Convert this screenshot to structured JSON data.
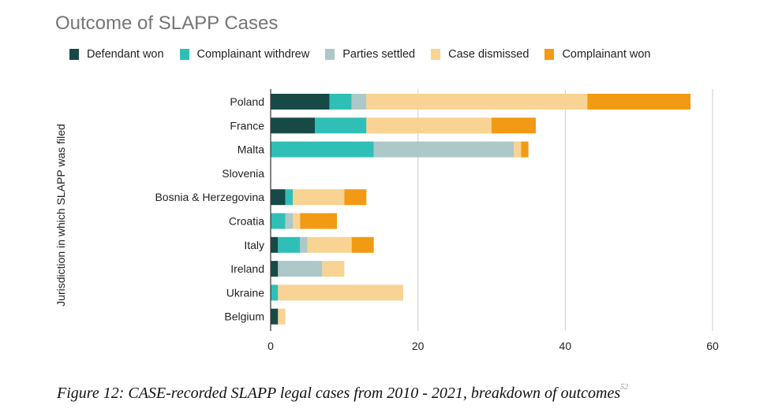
{
  "chart_data": {
    "type": "bar",
    "orientation": "horizontal",
    "stacked": true,
    "title": "Outcome of SLAPP Cases",
    "ylabel": "Jurisdiction in which SLAPP was filed",
    "xlabel": "",
    "xlim": [
      0,
      60
    ],
    "xticks": [
      0,
      20,
      40,
      60
    ],
    "grid": true,
    "legend_position": "top",
    "categories": [
      "Poland",
      "France",
      "Malta",
      "Slovenia",
      "Bosnia & Herzegovina",
      "Croatia",
      "Italy",
      "Ireland",
      "Ukraine",
      "Belgium"
    ],
    "series": [
      {
        "name": "Defendant won",
        "color": "#174a47",
        "values": [
          8,
          6,
          0,
          0,
          2,
          0,
          1,
          1,
          0,
          1
        ]
      },
      {
        "name": "Complainant withdrew",
        "color": "#30bfb7",
        "values": [
          3,
          7,
          14,
          0,
          1,
          2,
          3,
          0,
          1,
          0
        ]
      },
      {
        "name": "Parties settled",
        "color": "#adc8c8",
        "values": [
          2,
          0,
          19,
          0,
          0,
          1,
          1,
          6,
          0,
          0
        ]
      },
      {
        "name": "Case dismissed",
        "color": "#f8d393",
        "values": [
          30,
          17,
          1,
          0,
          7,
          1,
          6,
          3,
          17,
          1
        ]
      },
      {
        "name": "Complainant won",
        "color": "#f29a13",
        "values": [
          14,
          6,
          1,
          0,
          3,
          5,
          3,
          0,
          0,
          0
        ]
      }
    ]
  },
  "caption": {
    "text": "Figure 12: CASE-recorded SLAPP legal cases from 2010 - 2021, breakdown of outcomes",
    "footnote": "52"
  }
}
